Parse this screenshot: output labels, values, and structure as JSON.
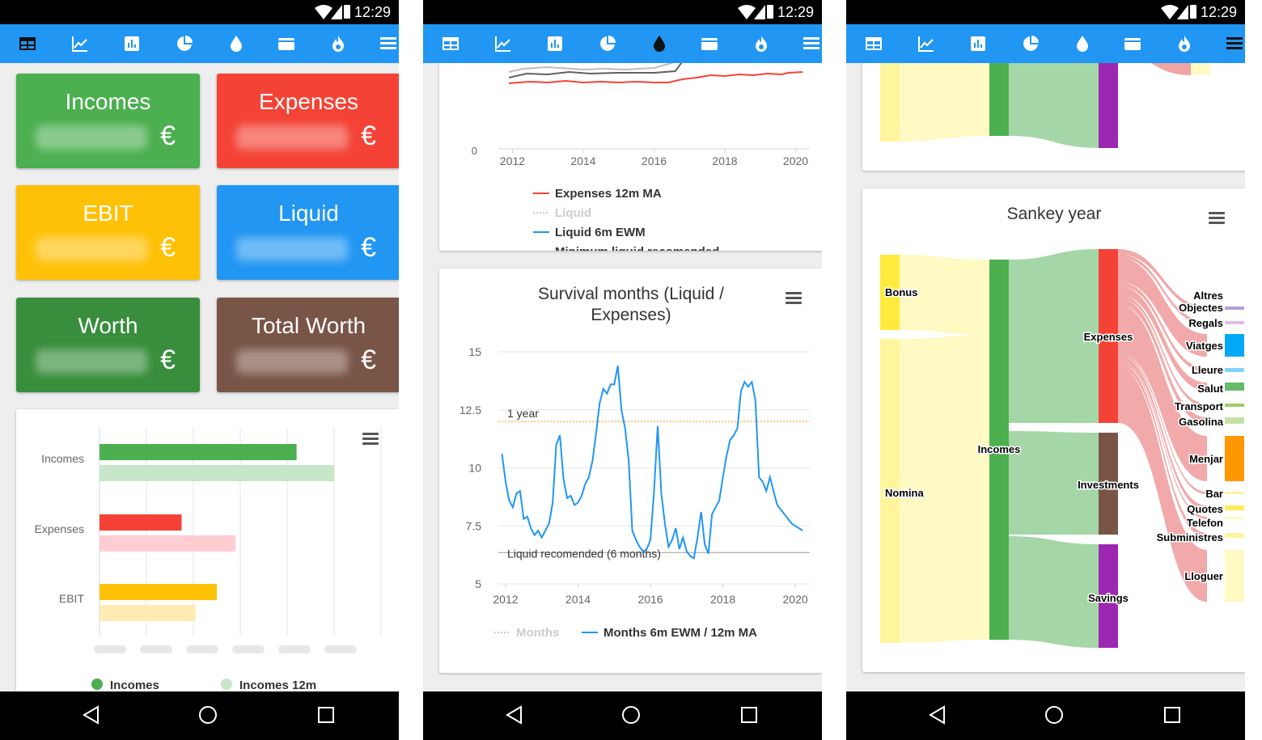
{
  "status": {
    "time": "12:29"
  },
  "toolbar_icons": [
    "table-icon",
    "line-chart-icon",
    "bar-chart-icon",
    "pie-chart-icon",
    "drop-icon",
    "wallet-icon",
    "fire-icon",
    "menu-icon"
  ],
  "nav_icons": [
    "back-icon",
    "home-icon",
    "recents-icon"
  ],
  "colors": {
    "appbar": "#2196f3",
    "incomes": "#4caf50",
    "expenses": "#f44336",
    "ebit": "#ffc107",
    "liquid": "#2196f3",
    "worth": "#388e3c",
    "total_worth": "#795548"
  },
  "screen1": {
    "tiles": [
      {
        "title": "Incomes",
        "currency": "€"
      },
      {
        "title": "Expenses",
        "currency": "€"
      },
      {
        "title": "EBIT",
        "currency": "€"
      },
      {
        "title": "Liquid",
        "currency": "€"
      },
      {
        "title": "Worth",
        "currency": "€"
      },
      {
        "title": "Total Worth",
        "currency": "€"
      }
    ],
    "legend": [
      "Incomes",
      "Incomes 12m"
    ]
  },
  "screen2": {
    "legend": [
      "Expenses 12m MA",
      "Liquid",
      "Liquid 6m EWM",
      "Minimum liquid recomended",
      "Liquid recomended"
    ],
    "survival_legend": [
      "Months",
      "Months 6m EWM / 12m MA"
    ]
  },
  "screen3": {
    "nodes_left": [
      "Bonus",
      "Nomina"
    ],
    "nodes_mid": [
      "Incomes"
    ],
    "nodes_split": [
      "Expenses",
      "Investments",
      "Savings"
    ],
    "nodes_right": [
      "Altres",
      "Objectes",
      "Regals",
      "Viatges",
      "Lleure",
      "Salut",
      "Transport",
      "Gasolina",
      "Menjar",
      "Bar",
      "Quotes",
      "Telefon",
      "Subministres",
      "Lloguer"
    ]
  },
  "chart_data": [
    {
      "type": "bar",
      "orientation": "horizontal",
      "categories": [
        "Incomes",
        "Expenses",
        "EBIT"
      ],
      "series": [
        {
          "name": "Incomes",
          "values": [
            0.84,
            0.35,
            0.5
          ]
        },
        {
          "name": "Incomes 12m",
          "values": [
            1.0,
            0.58,
            0.41
          ]
        }
      ],
      "xlim": [
        0,
        1.2
      ]
    },
    {
      "type": "line",
      "x": [
        2012,
        2014,
        2016,
        2018,
        2020
      ],
      "xlim": [
        2011.6,
        2020.4
      ],
      "yticks": [
        0
      ],
      "series": [
        {
          "name": "Expenses 12m MA"
        },
        {
          "name": "Liquid"
        },
        {
          "name": "Liquid 6m EWM"
        },
        {
          "name": "Minimum liquid recomended"
        },
        {
          "name": "Liquid recomended"
        }
      ]
    },
    {
      "type": "line",
      "title": "Survival months (Liquid / Expenses)",
      "x_ticks": [
        2012,
        2014,
        2016,
        2018,
        2020
      ],
      "y_ticks": [
        15,
        12.5,
        10,
        7.5,
        5
      ],
      "xlim": [
        2011.8,
        2020.4
      ],
      "ylim": [
        5,
        15
      ],
      "annotations": [
        {
          "label": "1 year",
          "y": 12
        },
        {
          "label": "Liquid recomended (6 months)",
          "y": 6
        }
      ],
      "series": [
        {
          "name": "Months"
        },
        {
          "name": "Months 6m EWM / 12m MA",
          "x": [
            2011.9,
            2012.0,
            2012.1,
            2012.2,
            2012.3,
            2012.4,
            2012.5,
            2012.6,
            2012.7,
            2012.8,
            2012.9,
            2013.0,
            2013.1,
            2013.2,
            2013.3,
            2013.4,
            2013.5,
            2013.6,
            2013.7,
            2013.8,
            2013.9,
            2014.0,
            2014.1,
            2014.2,
            2014.3,
            2014.4,
            2014.5,
            2014.6,
            2014.7,
            2014.8,
            2014.9,
            2015.0,
            2015.1,
            2015.2,
            2015.3,
            2015.4,
            2015.5,
            2015.6,
            2015.7,
            2015.8,
            2015.9,
            2016.0,
            2016.1,
            2016.2,
            2016.3,
            2016.4,
            2016.5,
            2016.6,
            2016.7,
            2016.8,
            2016.9,
            2017.0,
            2017.1,
            2017.2,
            2017.3,
            2017.4,
            2017.5,
            2017.6,
            2017.7,
            2017.8,
            2017.9,
            2018.0,
            2018.1,
            2018.2,
            2018.3,
            2018.4,
            2018.5,
            2018.6,
            2018.7,
            2018.8,
            2018.9,
            2019.0,
            2019.1,
            2019.2,
            2019.3,
            2019.4,
            2019.5,
            2019.6,
            2019.7,
            2019.8,
            2019.9,
            2020.0,
            2020.1,
            2020.2
          ],
          "y": [
            10.6,
            9.4,
            8.6,
            8.3,
            8.9,
            9.0,
            7.8,
            7.9,
            7.4,
            7.1,
            7.3,
            7.0,
            7.3,
            7.6,
            8.5,
            11.0,
            11.4,
            9.5,
            8.7,
            8.8,
            8.4,
            8.5,
            8.8,
            9.3,
            9.6,
            10.3,
            11.5,
            12.8,
            13.4,
            13.2,
            13.6,
            13.6,
            14.4,
            12.5,
            11.7,
            10.3,
            7.3,
            6.9,
            6.6,
            6.4,
            6.5,
            6.9,
            9.0,
            11.8,
            8.9,
            7.6,
            6.6,
            6.9,
            7.4,
            6.5,
            7.0,
            6.4,
            6.2,
            6.1,
            7.0,
            8.1,
            6.7,
            6.3,
            8.0,
            8.3,
            8.6,
            9.6,
            10.5,
            11.2,
            11.4,
            11.7,
            13.3,
            13.7,
            13.5,
            13.7,
            12.9,
            9.6,
            9.4,
            9.0,
            9.6,
            9.0,
            8.4,
            8.2,
            8.0,
            7.8,
            7.6,
            7.5,
            7.4,
            7.3
          ]
        }
      ]
    },
    {
      "type": "sankey",
      "title": "Sankey year",
      "links": [
        {
          "from": "Bonus",
          "to": "Incomes"
        },
        {
          "from": "Nomina",
          "to": "Incomes"
        },
        {
          "from": "Incomes",
          "to": "Expenses"
        },
        {
          "from": "Incomes",
          "to": "Investments"
        },
        {
          "from": "Incomes",
          "to": "Savings"
        },
        {
          "from": "Expenses",
          "to": "Altres"
        },
        {
          "from": "Expenses",
          "to": "Objectes"
        },
        {
          "from": "Expenses",
          "to": "Regals"
        },
        {
          "from": "Expenses",
          "to": "Viatges"
        },
        {
          "from": "Expenses",
          "to": "Lleure"
        },
        {
          "from": "Expenses",
          "to": "Salut"
        },
        {
          "from": "Expenses",
          "to": "Transport"
        },
        {
          "from": "Expenses",
          "to": "Gasolina"
        },
        {
          "from": "Expenses",
          "to": "Menjar"
        },
        {
          "from": "Expenses",
          "to": "Bar"
        },
        {
          "from": "Expenses",
          "to": "Quotes"
        },
        {
          "from": "Expenses",
          "to": "Telefon"
        },
        {
          "from": "Expenses",
          "to": "Subministres"
        },
        {
          "from": "Expenses",
          "to": "Lloguer"
        }
      ]
    }
  ]
}
